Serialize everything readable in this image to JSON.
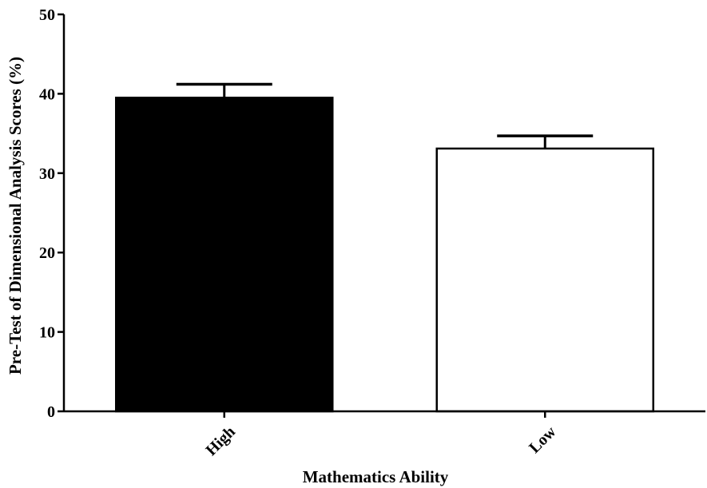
{
  "chart_data": {
    "type": "bar",
    "title": "",
    "xlabel": "Mathematics Ability",
    "ylabel": "Pre-Test of Dimensional Analysis Scores (%)",
    "categories": [
      "High",
      "Low"
    ],
    "values": [
      39.5,
      33.1
    ],
    "error_upper": [
      41.2,
      34.7
    ],
    "bar_fill": [
      "#000000",
      "#ffffff"
    ],
    "ylim": [
      0,
      50
    ],
    "yticks": [
      0,
      10,
      20,
      30,
      40,
      50
    ],
    "grid": false,
    "legend": "none"
  }
}
